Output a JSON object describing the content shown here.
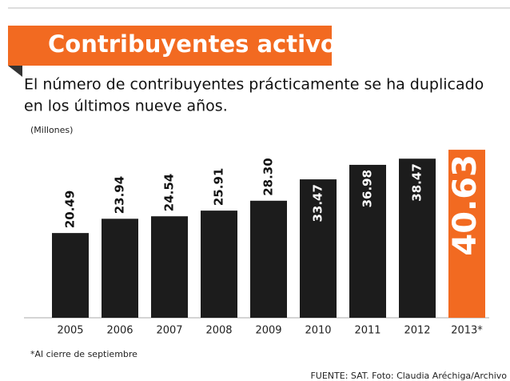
{
  "chart_data": {
    "type": "bar",
    "title": "Contribuyentes activos",
    "subtitle": [
      "El número de contribuyentes prácticamente se ha duplicado",
      "en los últimos nueve años."
    ],
    "unit_label": "(Millones)",
    "categories": [
      "2005",
      "2006",
      "2007",
      "2008",
      "2009",
      "2010",
      "2011",
      "2012",
      "2013*"
    ],
    "values": [
      20.49,
      23.94,
      24.54,
      25.91,
      28.3,
      33.47,
      36.98,
      38.47,
      40.63
    ],
    "value_labels": [
      "20.49",
      "23.94",
      "24.54",
      "25.91",
      "28.30",
      "33.47",
      "36.98",
      "38.47",
      "40.63"
    ],
    "colors": [
      "#1c1c1c",
      "#1c1c1c",
      "#1c1c1c",
      "#1c1c1c",
      "#1c1c1c",
      "#1c1c1c",
      "#1c1c1c",
      "#1c1c1c",
      "#f26a21"
    ],
    "ylim": [
      0,
      42
    ],
    "footnote": "*Al cierre de septiembre",
    "source": "FUENTE: SAT. Foto: Claudia Aréchiga/Archivo"
  }
}
